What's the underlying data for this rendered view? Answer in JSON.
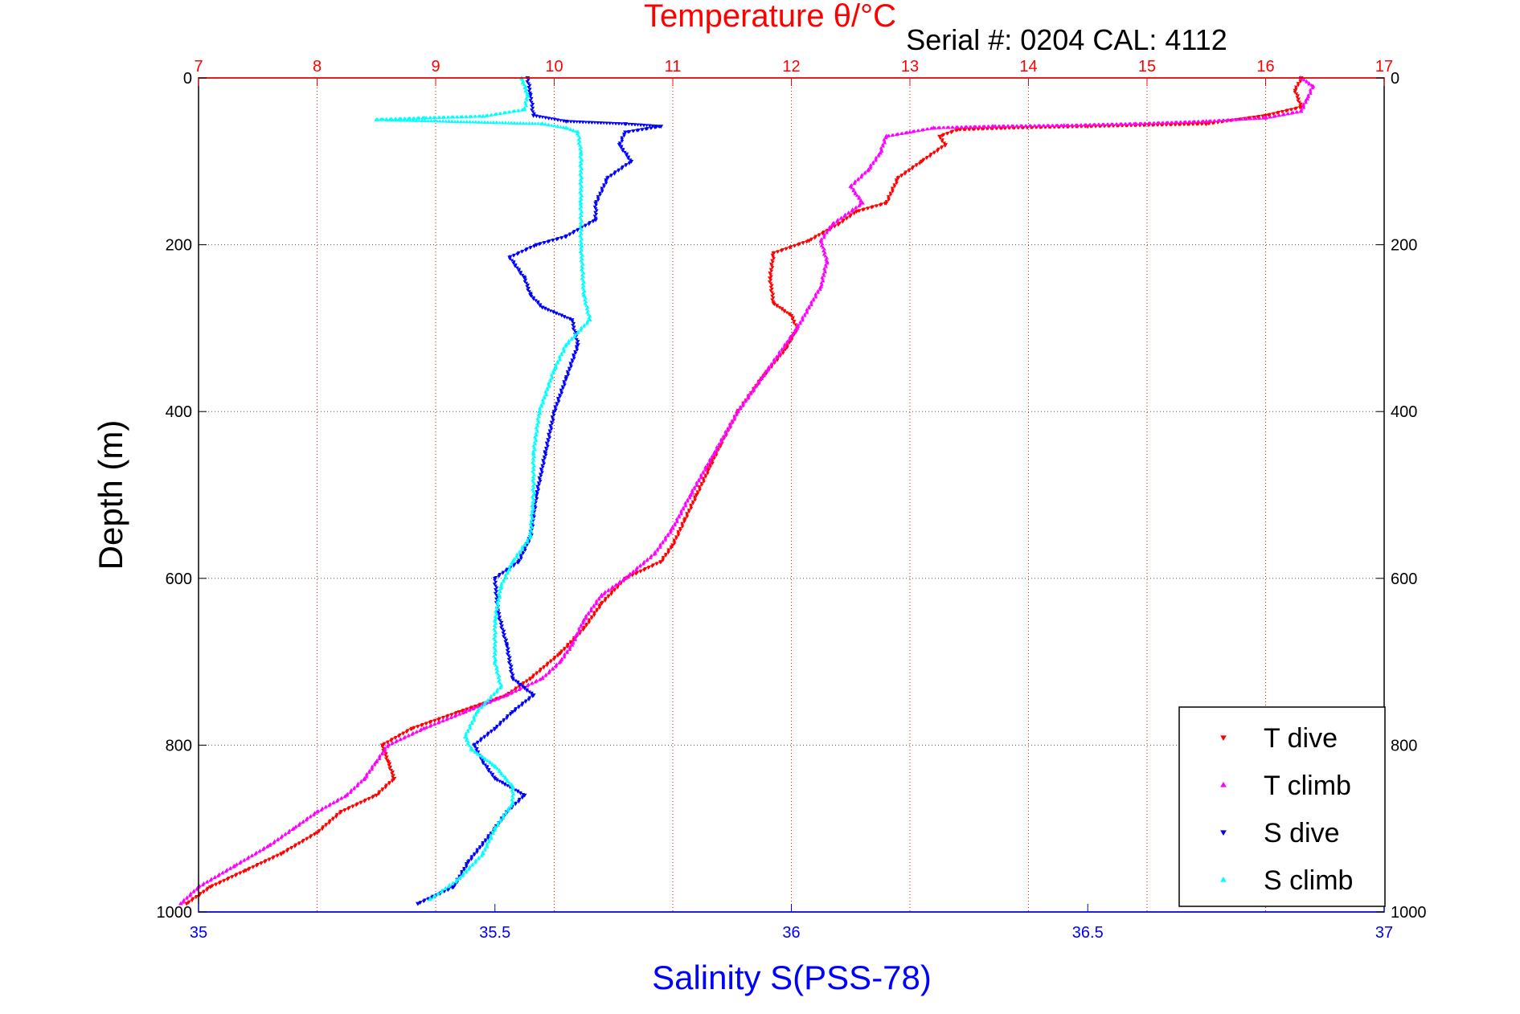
{
  "chart_data": {
    "type": "scatter",
    "title": "Temperature θ/°C",
    "subtitle": "Serial #: 0204  CAL: 4112",
    "xlabel": "Salinity S(PSS-78)",
    "ylabel": "Depth (m)",
    "x_top": {
      "label": "Temperature θ/°C",
      "lim": [
        7,
        17
      ],
      "ticks": [
        "7",
        "8",
        "9",
        "10",
        "11",
        "12",
        "13",
        "14",
        "15",
        "16",
        "17"
      ],
      "color": "#ff0000"
    },
    "x_bottom": {
      "label": "Salinity S(PSS-78)",
      "lim": [
        35,
        37
      ],
      "ticks": [
        "35",
        "35.5",
        "36",
        "36.5",
        "37"
      ],
      "color": "#0000ff"
    },
    "y": {
      "label": "Depth (m)",
      "lim": [
        0,
        1000
      ],
      "reversed": true,
      "ticks": [
        "0",
        "200",
        "400",
        "600",
        "800",
        "1000"
      ]
    },
    "grid": true,
    "legend_position": "bottom-right",
    "series": [
      {
        "name": "T dive",
        "axis": "temperature",
        "color": "#ff0000",
        "marker": "triangle-down",
        "points": [
          [
            16.3,
            0
          ],
          [
            16.25,
            15
          ],
          [
            16.3,
            35
          ],
          [
            16.0,
            45
          ],
          [
            15.5,
            55
          ],
          [
            14.5,
            58
          ],
          [
            13.8,
            60
          ],
          [
            13.4,
            62
          ],
          [
            13.25,
            70
          ],
          [
            13.3,
            80
          ],
          [
            13.1,
            100
          ],
          [
            12.9,
            120
          ],
          [
            12.8,
            150
          ],
          [
            12.55,
            160
          ],
          [
            12.4,
            175
          ],
          [
            12.15,
            195
          ],
          [
            11.85,
            210
          ],
          [
            11.82,
            240
          ],
          [
            11.85,
            270
          ],
          [
            12.0,
            285
          ],
          [
            12.05,
            300
          ],
          [
            11.95,
            325
          ],
          [
            11.75,
            360
          ],
          [
            11.55,
            400
          ],
          [
            11.4,
            440
          ],
          [
            11.3,
            470
          ],
          [
            11.2,
            500
          ],
          [
            11.1,
            530
          ],
          [
            11.0,
            560
          ],
          [
            10.9,
            580
          ],
          [
            10.6,
            600
          ],
          [
            10.4,
            630
          ],
          [
            10.25,
            660
          ],
          [
            10.05,
            690
          ],
          [
            9.8,
            720
          ],
          [
            9.6,
            740
          ],
          [
            9.2,
            760
          ],
          [
            8.8,
            780
          ],
          [
            8.55,
            800
          ],
          [
            8.6,
            820
          ],
          [
            8.65,
            840
          ],
          [
            8.5,
            860
          ],
          [
            8.2,
            880
          ],
          [
            8.0,
            905
          ],
          [
            7.7,
            930
          ],
          [
            7.4,
            950
          ],
          [
            7.1,
            970
          ],
          [
            6.9,
            990
          ]
        ]
      },
      {
        "name": "T climb",
        "axis": "temperature",
        "color": "#ff00ff",
        "marker": "triangle-up",
        "points": [
          [
            16.3,
            0
          ],
          [
            16.4,
            10
          ],
          [
            16.35,
            25
          ],
          [
            16.3,
            40
          ],
          [
            16.0,
            48
          ],
          [
            15.5,
            52
          ],
          [
            14.9,
            55
          ],
          [
            14.3,
            57
          ],
          [
            13.7,
            58
          ],
          [
            13.2,
            60
          ],
          [
            13.0,
            65
          ],
          [
            12.8,
            70
          ],
          [
            12.75,
            90
          ],
          [
            12.65,
            110
          ],
          [
            12.5,
            130
          ],
          [
            12.6,
            150
          ],
          [
            12.35,
            175
          ],
          [
            12.25,
            195
          ],
          [
            12.3,
            220
          ],
          [
            12.25,
            250
          ],
          [
            12.05,
            300
          ],
          [
            11.8,
            350
          ],
          [
            11.55,
            400
          ],
          [
            11.35,
            450
          ],
          [
            11.15,
            500
          ],
          [
            11.0,
            540
          ],
          [
            10.85,
            570
          ],
          [
            10.6,
            600
          ],
          [
            10.4,
            620
          ],
          [
            10.25,
            650
          ],
          [
            10.15,
            680
          ],
          [
            10.05,
            700
          ],
          [
            9.9,
            720
          ],
          [
            9.6,
            740
          ],
          [
            9.25,
            760
          ],
          [
            8.9,
            780
          ],
          [
            8.6,
            800
          ],
          [
            8.5,
            820
          ],
          [
            8.4,
            840
          ],
          [
            8.25,
            860
          ],
          [
            8.0,
            880
          ],
          [
            7.8,
            900
          ],
          [
            7.6,
            920
          ],
          [
            7.3,
            945
          ],
          [
            7.0,
            970
          ],
          [
            6.85,
            990
          ]
        ]
      },
      {
        "name": "S dive",
        "axis": "salinity",
        "color": "#0000ff",
        "marker": "triangle-down",
        "points": [
          [
            35.555,
            0
          ],
          [
            35.56,
            20
          ],
          [
            35.565,
            45
          ],
          [
            35.62,
            52
          ],
          [
            35.72,
            55
          ],
          [
            35.78,
            58
          ],
          [
            35.72,
            65
          ],
          [
            35.71,
            80
          ],
          [
            35.73,
            100
          ],
          [
            35.69,
            120
          ],
          [
            35.67,
            150
          ],
          [
            35.67,
            170
          ],
          [
            35.62,
            190
          ],
          [
            35.57,
            200
          ],
          [
            35.525,
            215
          ],
          [
            35.55,
            240
          ],
          [
            35.56,
            260
          ],
          [
            35.58,
            275
          ],
          [
            35.63,
            290
          ],
          [
            35.64,
            320
          ],
          [
            35.62,
            360
          ],
          [
            35.6,
            400
          ],
          [
            35.585,
            450
          ],
          [
            35.57,
            500
          ],
          [
            35.56,
            550
          ],
          [
            35.54,
            580
          ],
          [
            35.5,
            600
          ],
          [
            35.505,
            640
          ],
          [
            35.52,
            680
          ],
          [
            35.53,
            720
          ],
          [
            35.565,
            740
          ],
          [
            35.53,
            760
          ],
          [
            35.5,
            780
          ],
          [
            35.465,
            800
          ],
          [
            35.48,
            820
          ],
          [
            35.5,
            840
          ],
          [
            35.55,
            860
          ],
          [
            35.52,
            880
          ],
          [
            35.5,
            900
          ],
          [
            35.455,
            940
          ],
          [
            35.43,
            970
          ],
          [
            35.37,
            990
          ]
        ]
      },
      {
        "name": "S climb",
        "axis": "salinity",
        "color": "#00ffff",
        "marker": "triangle-up",
        "points": [
          [
            35.545,
            0
          ],
          [
            35.555,
            20
          ],
          [
            35.55,
            38
          ],
          [
            35.48,
            46
          ],
          [
            35.38,
            48
          ],
          [
            35.3,
            50
          ],
          [
            35.58,
            55
          ],
          [
            35.62,
            60
          ],
          [
            35.64,
            65
          ],
          [
            35.645,
            90
          ],
          [
            35.645,
            150
          ],
          [
            35.645,
            200
          ],
          [
            35.65,
            260
          ],
          [
            35.66,
            290
          ],
          [
            35.62,
            320
          ],
          [
            35.6,
            350
          ],
          [
            35.575,
            400
          ],
          [
            35.565,
            450
          ],
          [
            35.565,
            500
          ],
          [
            35.56,
            550
          ],
          [
            35.53,
            580
          ],
          [
            35.51,
            610
          ],
          [
            35.5,
            650
          ],
          [
            35.5,
            700
          ],
          [
            35.51,
            730
          ],
          [
            35.47,
            760
          ],
          [
            35.45,
            790
          ],
          [
            35.46,
            805
          ],
          [
            35.5,
            825
          ],
          [
            35.53,
            850
          ],
          [
            35.53,
            870
          ],
          [
            35.5,
            900
          ],
          [
            35.48,
            930
          ],
          [
            35.44,
            960
          ],
          [
            35.39,
            985
          ]
        ]
      }
    ]
  }
}
